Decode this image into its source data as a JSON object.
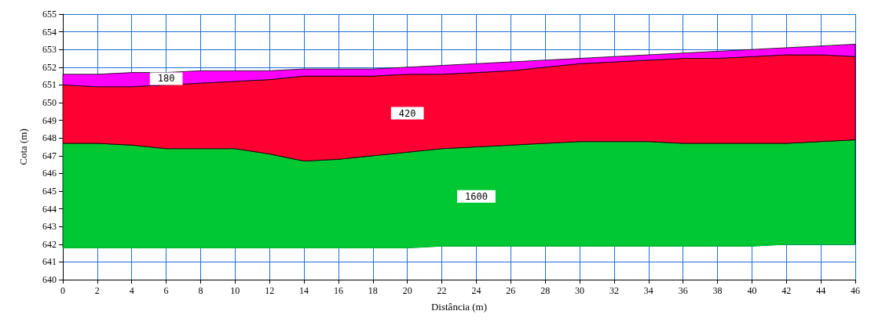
{
  "chart_data": {
    "type": "area",
    "xlabel": "Distância (m)",
    "ylabel": "Cota (m)",
    "x": [
      0,
      2,
      4,
      6,
      8,
      10,
      12,
      14,
      16,
      18,
      20,
      22,
      24,
      26,
      28,
      30,
      32,
      34,
      36,
      38,
      40,
      42,
      44,
      46
    ],
    "series": [
      {
        "type": "line",
        "color": "#00c832",
        "values": [
          641.8,
          641.8,
          641.8,
          641.8,
          641.8,
          641.8,
          641.8,
          641.8,
          641.8,
          641.8,
          641.8,
          641.9,
          641.9,
          641.9,
          641.9,
          641.9,
          641.9,
          641.9,
          641.9,
          641.9,
          641.9,
          642.0,
          642.0,
          642.0
        ]
      },
      {
        "name": "1600",
        "color": "#00c832",
        "values": [
          647.7,
          647.7,
          647.6,
          647.4,
          647.4,
          647.4,
          647.1,
          646.7,
          646.8,
          647.0,
          647.2,
          647.4,
          647.5,
          647.6,
          647.7,
          647.8,
          647.8,
          647.8,
          647.7,
          647.7,
          647.7,
          647.7,
          647.8,
          647.9
        ]
      },
      {
        "name": "420",
        "color": "#ff0033",
        "values": [
          651.0,
          650.9,
          650.9,
          651.0,
          651.1,
          651.2,
          651.3,
          651.5,
          651.5,
          651.5,
          651.6,
          651.6,
          651.7,
          651.8,
          652.0,
          652.2,
          652.3,
          652.4,
          652.5,
          652.5,
          652.6,
          652.7,
          652.7,
          652.6
        ]
      },
      {
        "name": "180",
        "color": "#ff00ff",
        "values": [
          651.6,
          651.6,
          651.7,
          651.7,
          651.8,
          651.8,
          651.8,
          651.9,
          651.9,
          651.9,
          652.0,
          652.1,
          652.2,
          652.3,
          652.4,
          652.5,
          652.6,
          652.7,
          652.8,
          652.9,
          653.0,
          653.1,
          653.2,
          653.3
        ]
      }
    ],
    "xlim": [
      0,
      46
    ],
    "xticks": [
      0,
      2,
      4,
      6,
      8,
      10,
      12,
      14,
      16,
      18,
      20,
      22,
      24,
      26,
      28,
      30,
      32,
      34,
      36,
      38,
      40,
      42,
      44,
      46
    ],
    "ylim": [
      640,
      655
    ],
    "yticks": [
      640,
      641,
      642,
      643,
      644,
      645,
      646,
      647,
      648,
      649,
      650,
      651,
      652,
      653,
      654,
      655
    ],
    "grid": true
  }
}
